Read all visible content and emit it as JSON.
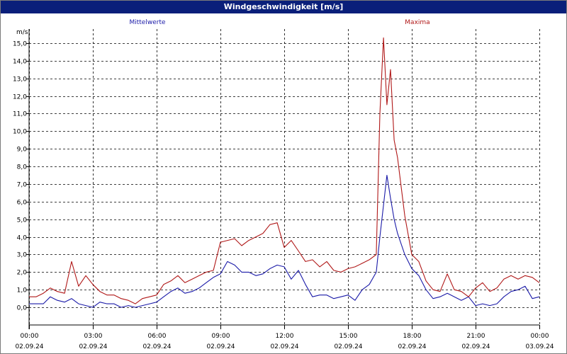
{
  "window": {
    "title": "Windgeschwindigkeit [m/s]"
  },
  "colors": {
    "title_bar": "#0a1f7a",
    "mean": "#1a1aa8",
    "max": "#b01818",
    "grid": "#000000"
  },
  "chart_data": {
    "type": "line",
    "title": "Windgeschwindigkeit [m/s]",
    "ylabel": "m/s",
    "xlabel": "",
    "ylim": [
      -1.0,
      15.8
    ],
    "yticks": [
      0.0,
      1.0,
      2.0,
      3.0,
      4.0,
      5.0,
      6.0,
      7.0,
      8.0,
      9.0,
      10.0,
      11.0,
      12.0,
      13.0,
      14.0,
      15.0
    ],
    "ytick_labels": [
      "0,0",
      "1,0",
      "2,0",
      "3,0",
      "4,0",
      "5,0",
      "6,0",
      "7,0",
      "8,0",
      "9,0",
      "10,0",
      "11,0",
      "12,0",
      "13,0",
      "14,0",
      "15,0"
    ],
    "xlim_hours": [
      0,
      24
    ],
    "xticks": [
      {
        "h": 0,
        "time": "00:00",
        "date": "02.09.24"
      },
      {
        "h": 3,
        "time": "03:00",
        "date": "02.09.24"
      },
      {
        "h": 6,
        "time": "06:00",
        "date": "02.09.24"
      },
      {
        "h": 9,
        "time": "09:00",
        "date": "02.09.24"
      },
      {
        "h": 12,
        "time": "12:00",
        "date": "02.09.24"
      },
      {
        "h": 15,
        "time": "15:00",
        "date": "02.09.24"
      },
      {
        "h": 18,
        "time": "18:00",
        "date": "02.09.24"
      },
      {
        "h": 21,
        "time": "21:00",
        "date": "02.09.24"
      },
      {
        "h": 24,
        "time": "00:00",
        "date": "03.09.24"
      }
    ],
    "grid": true,
    "series": [
      {
        "name": "Mittelwerte",
        "color": "#1a1aa8",
        "x": [
          0,
          0.33,
          0.67,
          1,
          1.33,
          1.67,
          2,
          2.33,
          2.67,
          3,
          3.33,
          3.67,
          4,
          4.33,
          4.67,
          5,
          5.33,
          5.67,
          6,
          6.33,
          6.67,
          7,
          7.33,
          7.67,
          8,
          8.33,
          8.67,
          9,
          9.33,
          9.67,
          10,
          10.33,
          10.67,
          11,
          11.33,
          11.67,
          12,
          12.33,
          12.67,
          13,
          13.33,
          13.67,
          14,
          14.33,
          14.67,
          15,
          15.33,
          15.67,
          16,
          16.33,
          16.5,
          16.67,
          16.83,
          17,
          17.17,
          17.33,
          17.67,
          18,
          18.33,
          18.67,
          19,
          19.33,
          19.67,
          20,
          20.33,
          20.67,
          21,
          21.33,
          21.67,
          22,
          22.33,
          22.67,
          23,
          23.33,
          23.67,
          24
        ],
        "y": [
          0.2,
          0.2,
          0.2,
          0.6,
          0.4,
          0.3,
          0.5,
          0.2,
          0.1,
          0.0,
          0.3,
          0.2,
          0.2,
          0.0,
          0.1,
          0.0,
          0.1,
          0.2,
          0.3,
          0.6,
          0.9,
          1.1,
          0.8,
          0.9,
          1.1,
          1.4,
          1.7,
          1.9,
          2.6,
          2.4,
          2.0,
          2.0,
          1.8,
          1.9,
          2.2,
          2.4,
          2.3,
          1.6,
          2.1,
          1.3,
          0.6,
          0.7,
          0.7,
          0.5,
          0.6,
          0.7,
          0.4,
          1.0,
          1.3,
          2.0,
          4.0,
          5.8,
          7.5,
          6.2,
          5.0,
          4.2,
          3.0,
          2.2,
          1.8,
          1.0,
          0.5,
          0.6,
          0.8,
          0.6,
          0.4,
          0.6,
          0.1,
          0.2,
          0.1,
          0.2,
          0.6,
          0.9,
          1.0,
          1.2,
          0.5,
          0.6
        ]
      },
      {
        "name": "Maxima",
        "color": "#b01818",
        "x": [
          0,
          0.33,
          0.67,
          1,
          1.33,
          1.67,
          2,
          2.33,
          2.67,
          3,
          3.33,
          3.67,
          4,
          4.33,
          4.67,
          5,
          5.33,
          5.67,
          6,
          6.33,
          6.67,
          7,
          7.33,
          7.67,
          8,
          8.33,
          8.67,
          9,
          9.33,
          9.67,
          10,
          10.33,
          10.67,
          11,
          11.33,
          11.67,
          12,
          12.33,
          12.67,
          13,
          13.33,
          13.67,
          14,
          14.33,
          14.67,
          15,
          15.33,
          15.67,
          16,
          16.33,
          16.5,
          16.67,
          16.83,
          17,
          17.17,
          17.33,
          17.67,
          18,
          18.33,
          18.67,
          19,
          19.33,
          19.67,
          20,
          20.33,
          20.67,
          21,
          21.33,
          21.67,
          22,
          22.33,
          22.67,
          23,
          23.33,
          23.67,
          24
        ],
        "y": [
          0.6,
          0.6,
          0.8,
          1.1,
          0.9,
          0.8,
          2.6,
          1.2,
          1.8,
          1.3,
          0.9,
          0.7,
          0.7,
          0.5,
          0.4,
          0.2,
          0.5,
          0.6,
          0.7,
          1.3,
          1.5,
          1.8,
          1.4,
          1.6,
          1.8,
          2.0,
          2.1,
          3.7,
          3.8,
          3.9,
          3.5,
          3.8,
          4.0,
          4.2,
          4.7,
          4.8,
          3.4,
          3.8,
          3.2,
          2.6,
          2.7,
          2.3,
          2.6,
          2.1,
          2.0,
          2.2,
          2.3,
          2.5,
          2.7,
          3.0,
          11.0,
          15.3,
          11.5,
          13.5,
          9.5,
          8.5,
          5.2,
          3.0,
          2.6,
          1.5,
          1.0,
          0.9,
          1.9,
          1.0,
          0.9,
          0.6,
          1.1,
          1.4,
          0.9,
          1.1,
          1.6,
          1.8,
          1.6,
          1.8,
          1.7,
          1.4
        ]
      }
    ]
  }
}
